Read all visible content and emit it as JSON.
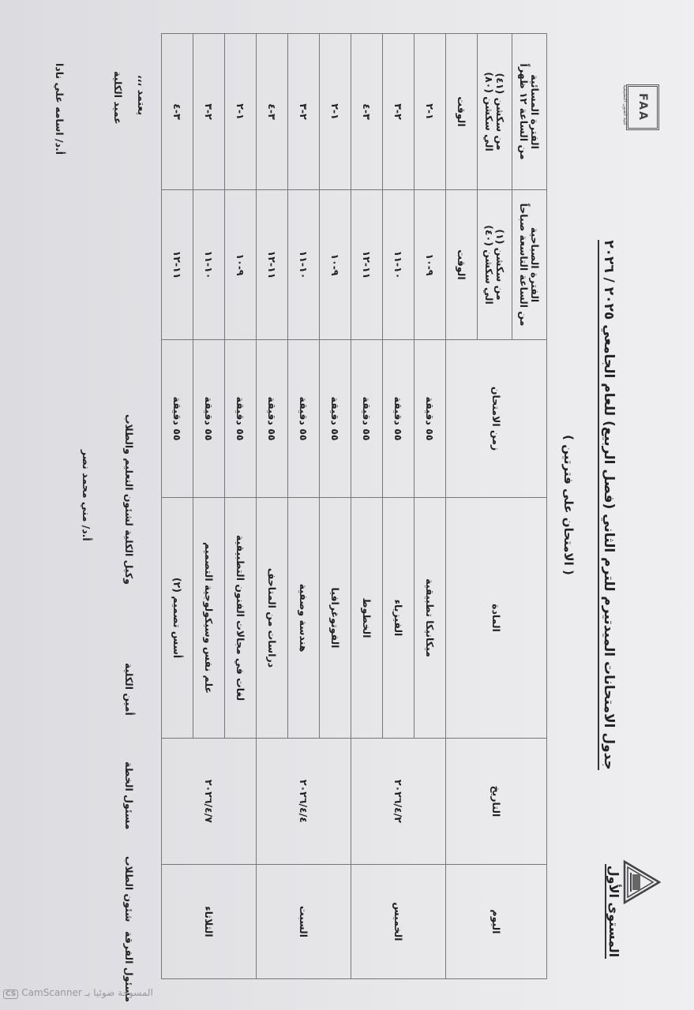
{
  "header": {
    "title": "جدول الامتحانات الميدتيرم للترم الثاني (فصل الربيع) للعام الجامعي ٢٠٢٥ / ٢٠٢٦",
    "subtitle": "( الامتحان على فترتين )",
    "level": "المستوى الأول",
    "logo_left_text": "FAA",
    "logo_left_caption": "كلية الفنون التطبيقية"
  },
  "table": {
    "headers": {
      "day": "اليوم",
      "date": "التاريخ",
      "subject": "المادة",
      "duration": "زمن الامتحان",
      "morning_period": "الفترة الصباحية",
      "morning_from": "من الساعة التاسعة صباحاً",
      "morning_sections_from": "من سكشن (١)",
      "morning_sections_to": "الي سكشن (٤٠)",
      "morning_time": "الوقت",
      "evening_period": "الفترة المسائية",
      "evening_from": "من الساعة ١٢ ظهراً",
      "evening_sections_from": "من سكشن (٤١)",
      "evening_sections_to": "الي سكشن (٨٠)",
      "evening_time": "الوقت"
    },
    "days": [
      {
        "day": "الخميس",
        "date": "٢٠٢٦/٤/٢",
        "rows": [
          {
            "subject": "ميكانيكا تطبيقية",
            "duration": "٥٥ دقيقة",
            "morning": "٩-١٠",
            "evening": "١-٢"
          },
          {
            "subject": "الفيزياء",
            "duration": "٥٥ دقيقة",
            "morning": "١٠-١١",
            "evening": "٢-٣"
          },
          {
            "subject": "الخطوط",
            "duration": "٥٥ دقيقة",
            "morning": "١١-١٢",
            "evening": "٣-٤"
          }
        ]
      },
      {
        "day": "السبت",
        "date": "٢٠٢٦/٤/٤",
        "rows": [
          {
            "subject": "الفوتوغرافيا",
            "duration": "٥٥ دقيقة",
            "morning": "٩-١٠",
            "evening": "١-٢"
          },
          {
            "subject": "هندسة وصفية",
            "duration": "٥٥ دقيقة",
            "morning": "١٠-١١",
            "evening": "٢-٣"
          },
          {
            "subject": "دراسات من المتاحف",
            "duration": "٥٥ دقيقة",
            "morning": "١١-١٢",
            "evening": "٣-٤"
          }
        ]
      },
      {
        "day": "الثلاثاء",
        "date": "٢٠٢٦/٤/٧",
        "rows": [
          {
            "subject": "لغات في مجالات الفنون التطبيقية",
            "duration": "٥٥ دقيقة",
            "morning": "٩-١٠",
            "evening": "١-٢"
          },
          {
            "subject": "علم نفس وسيكولوجية التصميم",
            "duration": "٥٥ دقيقة",
            "morning": "١٠-١١",
            "evening": "٢-٣"
          },
          {
            "subject": "أسس تصميم (٢)",
            "duration": "٥٥ دقيقة",
            "morning": "١١-١٢",
            "evening": "٣-٤"
          }
        ]
      }
    ]
  },
  "signatures": {
    "class_officer": "مسئول الفرقة",
    "student_affairs": "شئون الطلاب",
    "plan_officer": "مسئول الخطة",
    "faculty_secretary": "أمين الكلية",
    "vice_dean": "وكيل الكلية لشئون التعليم والطلاب",
    "vice_dean_name": "أ.د/ مني محمد نصر",
    "approved": "يعتمد ،،،",
    "dean": "عميد الكلية",
    "dean_name": "أ.د/ اسامه علي نادا"
  },
  "watermark": "CamScanner المسوحة ضوئيا بـ"
}
